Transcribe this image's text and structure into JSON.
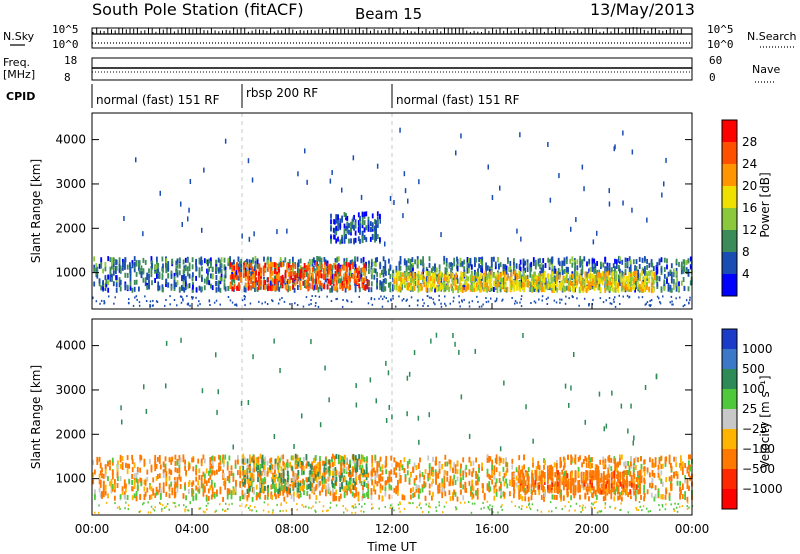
{
  "header": {
    "station": "South Pole Station (fitACF)",
    "beam": "Beam 15",
    "date": "13/May/2013"
  },
  "summary_panels": {
    "nsky_label": "N.Sky",
    "nsearch_label": "N.Search",
    "freq_label_line1": "Freq.",
    "freq_label_line2": "[MHz]",
    "nave_label": "Nave",
    "cpid_label": "CPID",
    "noise_ticks": [
      "10^5",
      "10^0"
    ],
    "noise_ticks_right": [
      "10^5",
      "10^0"
    ],
    "freq_ticks": [
      "18",
      "8"
    ],
    "nave_ticks": [
      "60",
      "0"
    ]
  },
  "cpid_segments": [
    {
      "label": "normal (fast) 151 RF",
      "start_hour": 0.0,
      "end_hour": 6.0
    },
    {
      "label": "rbsp 200 RF",
      "start_hour": 6.0,
      "end_hour": 12.0
    },
    {
      "label": "normal (fast) 151 RF",
      "start_hour": 12.0,
      "end_hour": 24.0
    }
  ],
  "colors": {
    "power": [
      "#0000ff",
      "#1a4db3",
      "#3c8c5a",
      "#8cc83c",
      "#f0e000",
      "#ff9600",
      "#ff5000",
      "#ff0000"
    ],
    "velocity": [
      "#1a3cc8",
      "#3c78c8",
      "#2e8b57",
      "#50c83c",
      "#c8c8c8",
      "#ffb400",
      "#ff7800",
      "#ff2800",
      "#ff0000"
    ]
  },
  "chart_data": [
    {
      "type": "heatmap",
      "title": "",
      "xlabel": "",
      "ylabel": "Slant Range [km]",
      "xlim": [
        0,
        24
      ],
      "ylim": [
        180,
        4600
      ],
      "yticks": [
        "1000",
        "2000",
        "3000",
        "4000"
      ],
      "colorbar_label": "Power [dB]",
      "colorbar_ticks": [
        "4",
        "8",
        "12",
        "16",
        "20",
        "24",
        "28"
      ],
      "colorbar_range": [
        0,
        32
      ],
      "value_name": "power",
      "bands": [
        {
          "start_hour": 0.0,
          "end_hour": 24.0,
          "center_km": 950,
          "thickness_km": 450,
          "value": 8
        },
        {
          "start_hour": 5.5,
          "end_hour": 11.0,
          "center_km": 900,
          "thickness_km": 350,
          "value": 26
        },
        {
          "start_hour": 12.0,
          "end_hour": 22.5,
          "center_km": 780,
          "thickness_km": 250,
          "value": 18
        },
        {
          "start_hour": 9.5,
          "end_hour": 11.5,
          "center_km": 2000,
          "thickness_km": 400,
          "value": 6
        }
      ]
    },
    {
      "type": "heatmap",
      "title": "",
      "xlabel": "Time UT",
      "ylabel": "Slant Range [km]",
      "xlim": [
        0,
        24
      ],
      "ylim": [
        180,
        4600
      ],
      "yticks": [
        "1000",
        "2000",
        "3000",
        "4000"
      ],
      "xticks": [
        "00:00",
        "04:00",
        "08:00",
        "12:00",
        "16:00",
        "20:00",
        "00:00"
      ],
      "colorbar_label": "Velocity [m s⁻¹]",
      "colorbar_ticks": [
        "1000",
        "500",
        "100",
        "25",
        "−25",
        "−100",
        "−500",
        "−1000"
      ],
      "colorbar_range": [
        -1000,
        1000
      ],
      "value_name": "velocity",
      "bands": [
        {
          "start_hour": 0.0,
          "end_hour": 24.0,
          "center_km": 1000,
          "thickness_km": 600,
          "value": -150
        },
        {
          "start_hour": 6.0,
          "end_hour": 11.0,
          "center_km": 1100,
          "thickness_km": 500,
          "value": 60
        },
        {
          "start_hour": 17.0,
          "end_hour": 22.0,
          "center_km": 900,
          "thickness_km": 300,
          "value": -300
        }
      ]
    }
  ]
}
